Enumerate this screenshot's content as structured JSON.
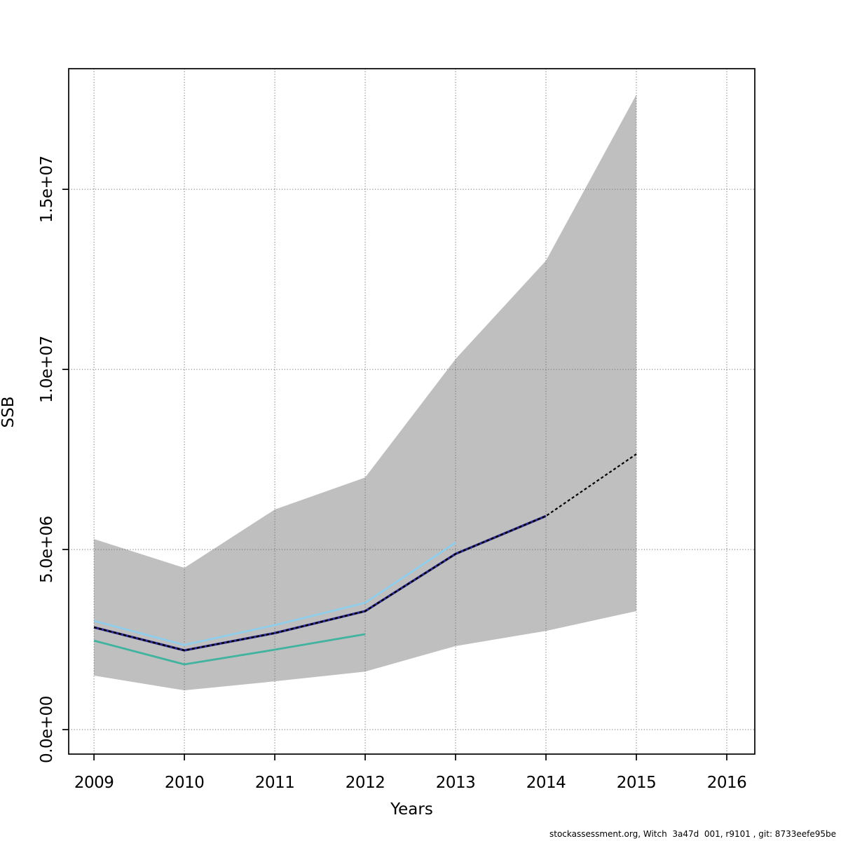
{
  "footer": {
    "attribution": "stockassessment.org, Witch  3a47d  001, r9101 , git: 8733eefe95be"
  },
  "chart_data": {
    "type": "line",
    "title": "",
    "xlabel": "Years",
    "ylabel": "SSB",
    "x_ticks": [
      2009,
      2010,
      2011,
      2012,
      2013,
      2014,
      2015,
      2016
    ],
    "y_ticks": {
      "values": [
        0,
        5000000,
        10000000,
        15000000
      ],
      "labels": [
        "0.0e+00",
        "5.0e+06",
        "1.0e+07",
        "1.5e+07"
      ]
    },
    "xlim": [
      2008.72,
      2016.31
    ],
    "ylim": [
      -680000,
      18350000
    ],
    "grid": true,
    "legend_position": "none",
    "band": {
      "name": "confidence-band",
      "color": "#bfbfbf",
      "x": [
        2009,
        2010,
        2011,
        2012,
        2013,
        2014,
        2015
      ],
      "upper": [
        5290000,
        4490000,
        6110000,
        7000000,
        10290000,
        13020000,
        17630000
      ],
      "lower": [
        1500000,
        1090000,
        1340000,
        1610000,
        2320000,
        2740000,
        3290000
      ]
    },
    "series": [
      {
        "name": "retro-run-teal",
        "color": "#41b39e",
        "dash": "solid",
        "width": 2.8,
        "x": [
          2009,
          2010,
          2011,
          2012
        ],
        "values": [
          2470000,
          1810000,
          2220000,
          2650000
        ]
      },
      {
        "name": "retro-run-lightblue",
        "color": "#8fcdea",
        "dash": "solid",
        "width": 2.8,
        "x": [
          2009,
          2010,
          2011,
          2012,
          2013
        ],
        "values": [
          3020000,
          2350000,
          2900000,
          3520000,
          5190000
        ]
      },
      {
        "name": "ssb-estimate-purple",
        "color": "#2d2a8c",
        "dash": "solid",
        "width": 3.4,
        "x": [
          2009,
          2010,
          2011,
          2012,
          2013,
          2014
        ],
        "values": [
          2840000,
          2200000,
          2680000,
          3290000,
          4880000,
          5930000
        ]
      },
      {
        "name": "ssb-estimate-forecast-dashed",
        "color": "#000000",
        "dash": "dashed",
        "width": 2.2,
        "x": [
          2009,
          2010,
          2011,
          2012,
          2013,
          2014,
          2015
        ],
        "values": [
          2840000,
          2200000,
          2680000,
          3290000,
          4880000,
          5930000,
          7650000
        ]
      }
    ]
  }
}
